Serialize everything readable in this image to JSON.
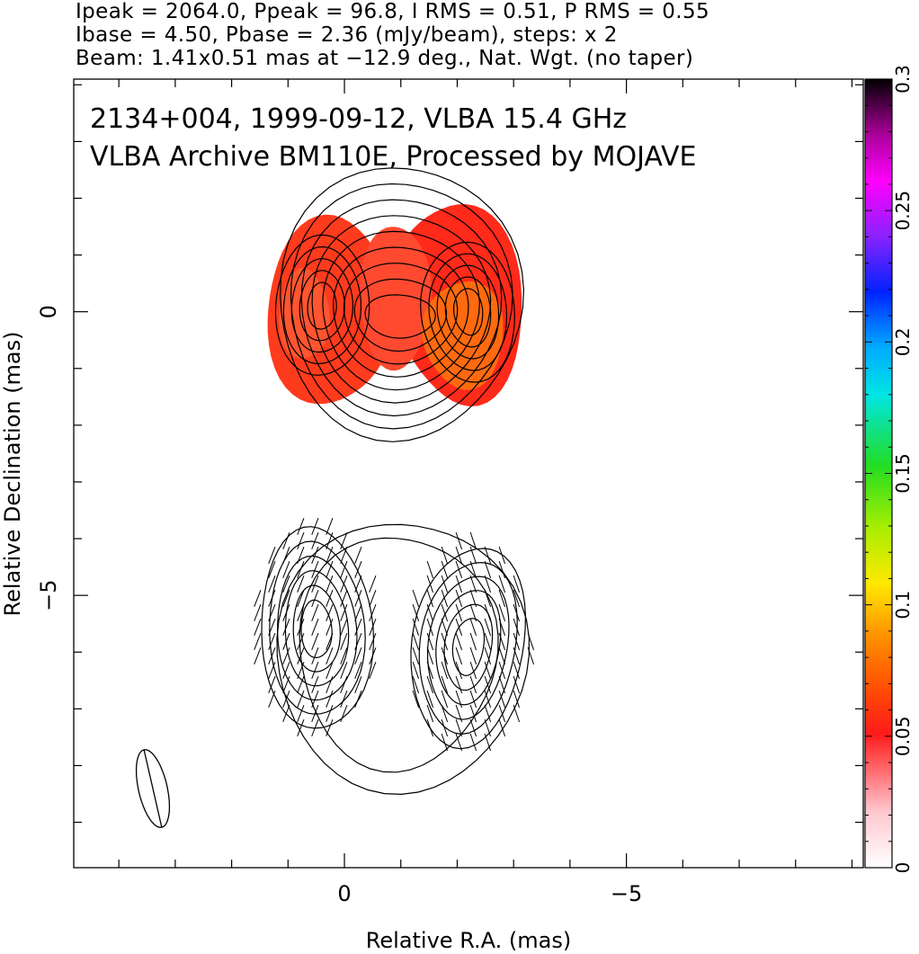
{
  "header": {
    "line1": "Ipeak = 2064.0, Ppeak = 96.8, I RMS = 0.51, P RMS = 0.55",
    "line2": "Ibase = 4.50, Pbase = 2.36 (mJy/beam), steps: x 2",
    "line3": "Beam: 1.41x0.51 mas at −12.9 deg., Nat. Wgt. (no taper)"
  },
  "chart_data": {
    "type": "heatmap",
    "title": "2134+004, 1999-09-12, VLBA 15.4 GHz",
    "subtitle": "VLBA Archive BM110E, Processed by MOJAVE",
    "xlabel": "Relative R.A. (mas)",
    "ylabel": "Relative Declination (mas)",
    "xlim": [
      4.8,
      -9.2
    ],
    "ylim": [
      -9.8,
      4.1
    ],
    "x_ticks": [
      {
        "value": 0,
        "label": "0"
      },
      {
        "value": -5,
        "label": "−5"
      }
    ],
    "y_ticks": [
      {
        "value": 0,
        "label": "0"
      },
      {
        "value": -5,
        "label": "−5"
      }
    ],
    "colorbar": {
      "range": [
        0,
        0.3
      ],
      "ticks": [
        {
          "value": 0,
          "label": "0"
        },
        {
          "value": 0.05,
          "label": "0.05"
        },
        {
          "value": 0.1,
          "label": "0.1"
        },
        {
          "value": 0.15,
          "label": "0.15"
        },
        {
          "value": 0.2,
          "label": "0.2"
        },
        {
          "value": 0.25,
          "label": "0.25"
        },
        {
          "value": 0.3,
          "label": "0.3"
        }
      ]
    },
    "upper_map": {
      "content": "total intensity contours with fractional polarization color",
      "components": [
        {
          "x": 0.4,
          "y": 0.1
        },
        {
          "x": -2.2,
          "y": 0.0
        }
      ]
    },
    "lower_map": {
      "content": "polarized intensity contours with EVPA ticks",
      "components": [
        {
          "x": 0.5,
          "y": -5.6
        },
        {
          "x": -2.2,
          "y": -5.9
        }
      ]
    },
    "beam": {
      "major_mas": 1.41,
      "minor_mas": 0.51,
      "pa_deg": -12.9
    }
  }
}
